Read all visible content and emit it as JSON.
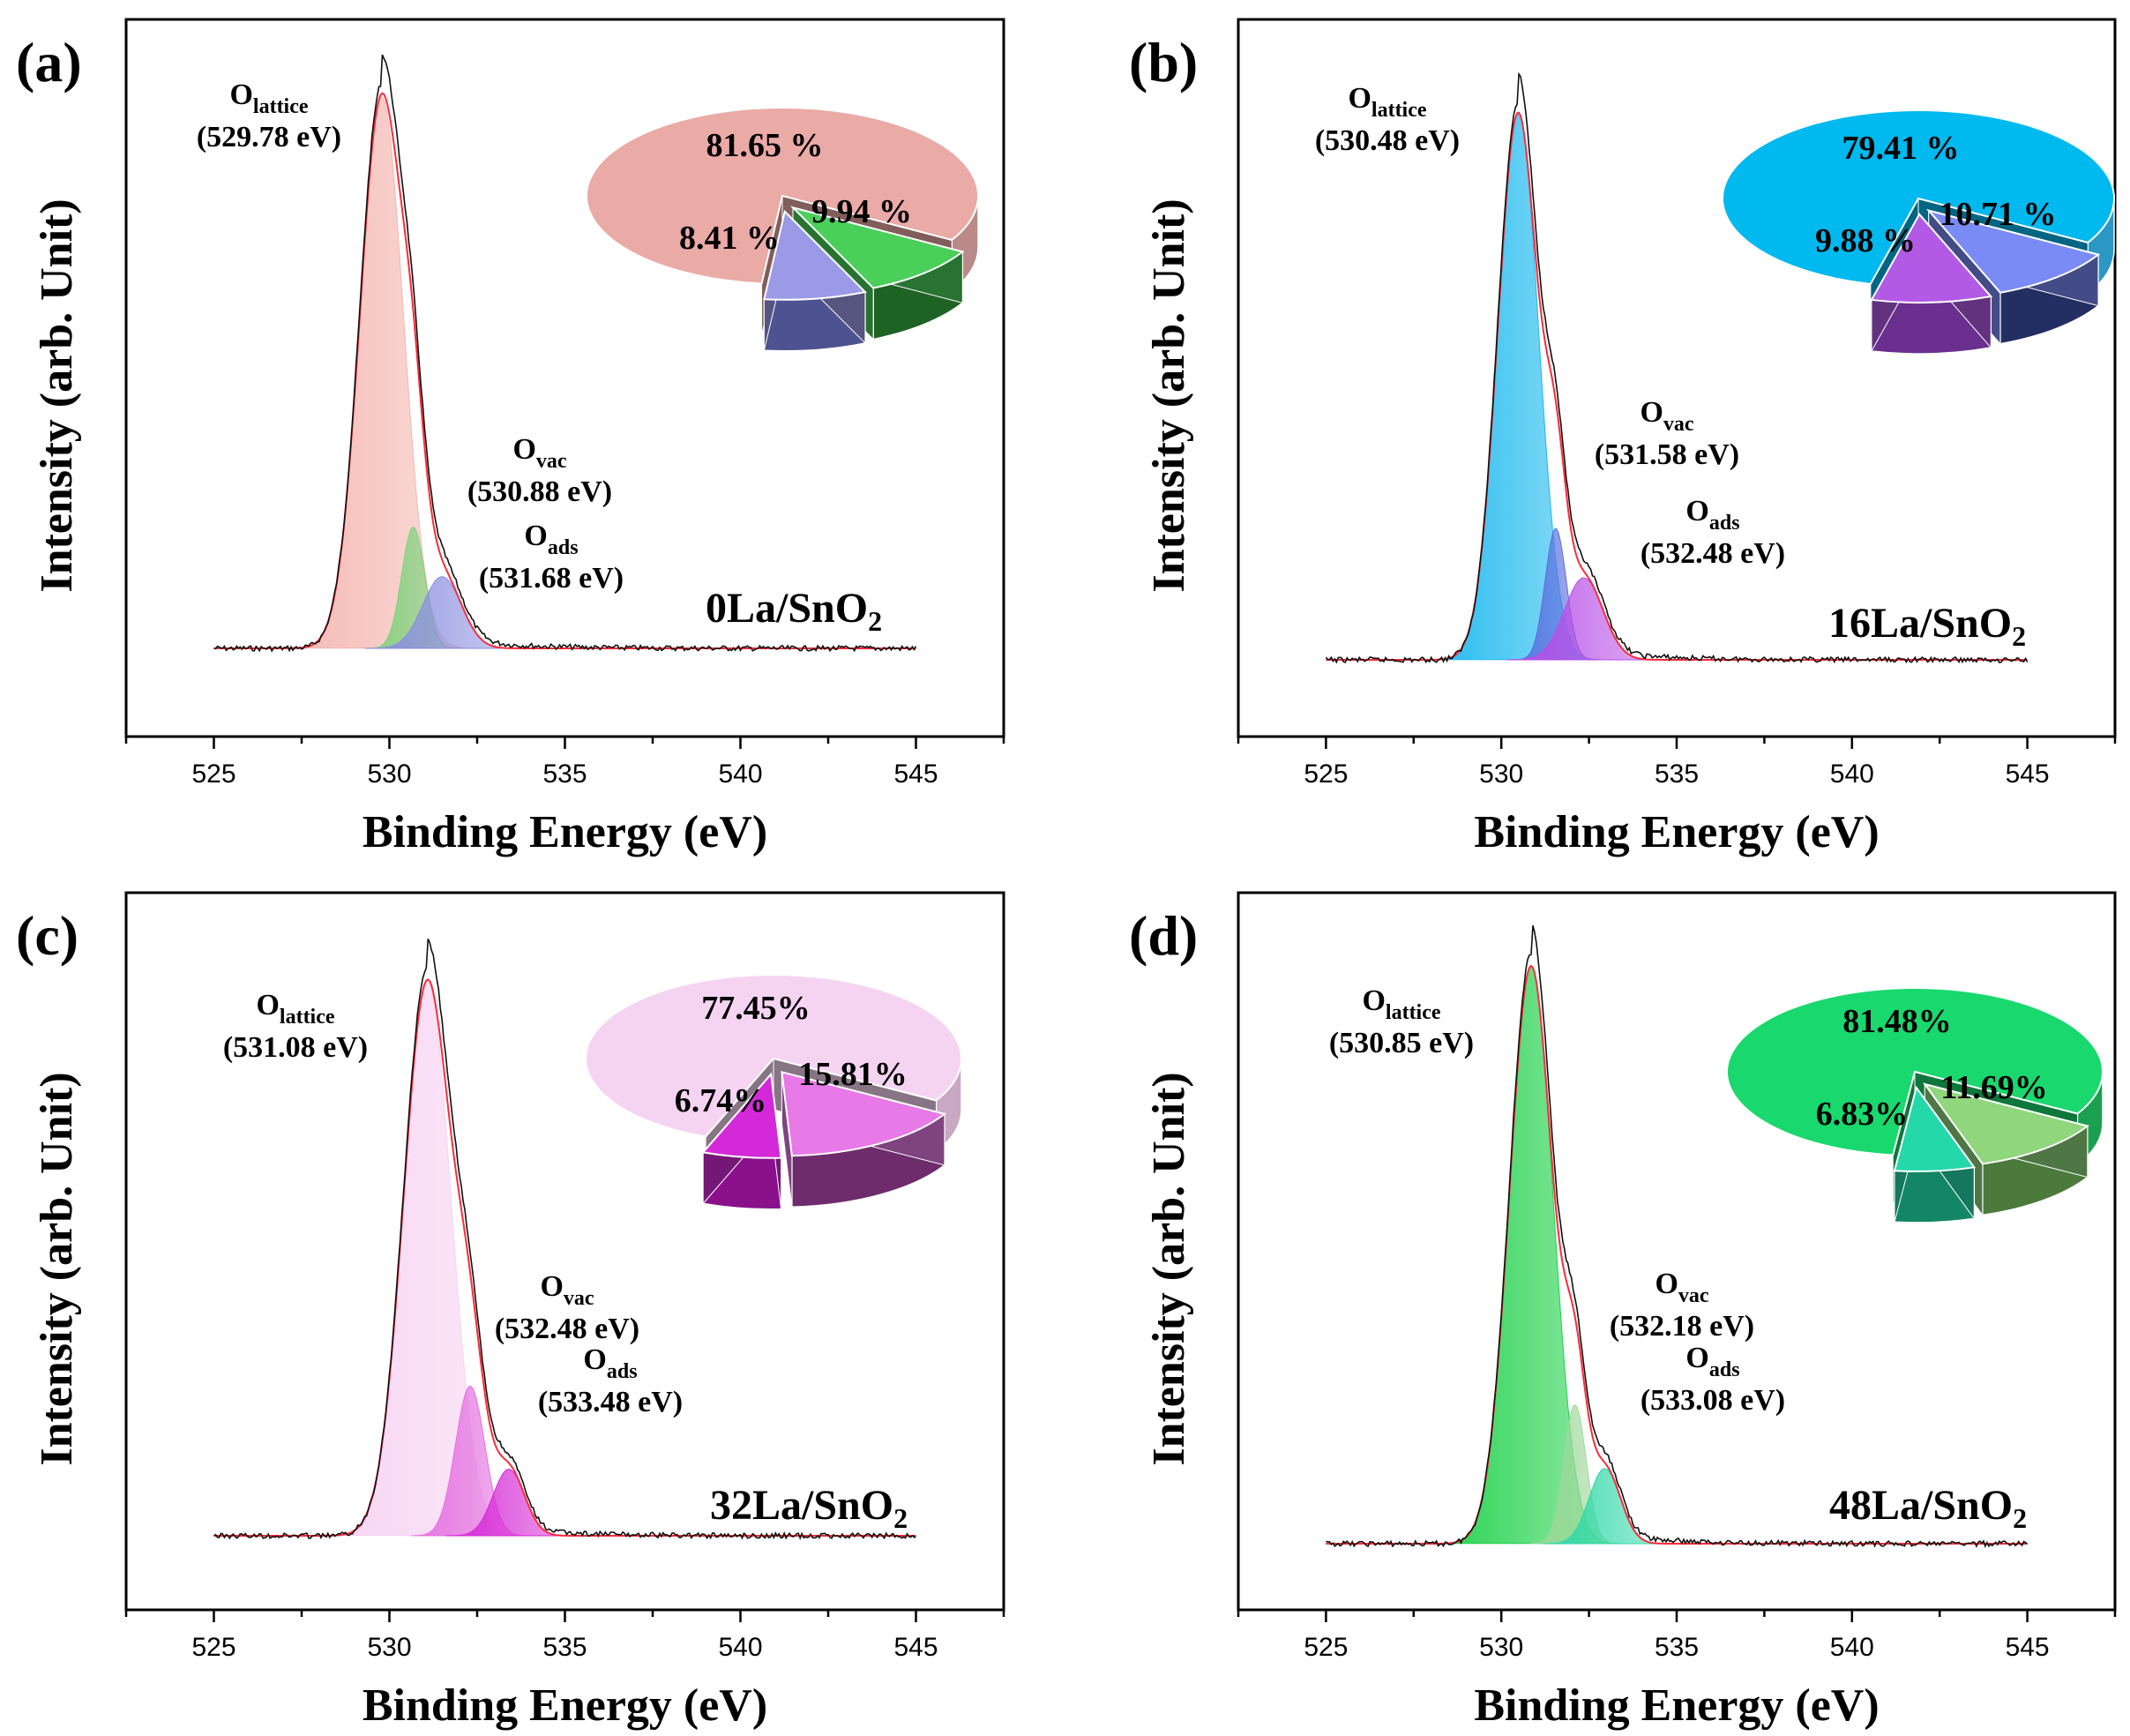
{
  "chart_data": [
    {
      "panel_label": "(a)",
      "type": "area",
      "sample": "0La/SnO",
      "sample_sub": "2",
      "xlabel": "Binding Energy (eV)",
      "ylabel": "Intensity (arb. Unit)",
      "xlim": [
        522.5,
        547.5
      ],
      "xticks": [
        "525",
        "530",
        "535",
        "540",
        "545"
      ],
      "fit_range": [
        525,
        545
      ],
      "peaks": [
        {
          "name": "O",
          "sub": "lattice",
          "energy_label": "(529.78 eV)",
          "center": 529.78,
          "height": 1.0,
          "sigma": 0.62
        },
        {
          "name": "O",
          "sub": "vac",
          "energy_label": "(530.88 eV)",
          "center": 530.68,
          "height": 0.22,
          "sigma": 0.33
        },
        {
          "name": "O",
          "sub": "ads",
          "energy_label": "(531.68 eV)",
          "center": 531.5,
          "height": 0.13,
          "sigma": 0.55
        }
      ],
      "pie": [
        {
          "label": "81.65 %",
          "value": 81.65
        },
        {
          "label": "9.94 %",
          "value": 9.94
        },
        {
          "label": "8.41 %",
          "value": 8.41
        }
      ],
      "colors": {
        "lattice": "#f4b6b0",
        "vac": "#7cd27c",
        "ads": "#8a8fe0",
        "pie": [
          "#eaaaa6",
          "#49cf5a",
          "#9a9ae6"
        ],
        "pie_dark": [
          "#b98a87",
          "#1f6324",
          "#4f5291"
        ]
      }
    },
    {
      "panel_label": "(b)",
      "type": "area",
      "sample": "16La/SnO",
      "sample_sub": "2",
      "xlabel": "Binding Energy (eV)",
      "ylabel": "Intensity (arb. Unit)",
      "xlim": [
        522.5,
        547.5
      ],
      "xticks": [
        "525",
        "530",
        "535",
        "540",
        "545"
      ],
      "fit_range": [
        525,
        545
      ],
      "peaks": [
        {
          "name": "O",
          "sub": "lattice",
          "energy_label": "(530.48 eV)",
          "center": 530.48,
          "height": 1.0,
          "sigma": 0.58
        },
        {
          "name": "O",
          "sub": "vac",
          "energy_label": "(531.58 eV)",
          "center": 531.55,
          "height": 0.24,
          "sigma": 0.3
        },
        {
          "name": "O",
          "sub": "ads",
          "energy_label": "(532.48 eV)",
          "center": 532.35,
          "height": 0.15,
          "sigma": 0.55
        }
      ],
      "pie": [
        {
          "label": "79.41 %",
          "value": 79.41
        },
        {
          "label": "10.71 %",
          "value": 10.71
        },
        {
          "label": "9.88 %",
          "value": 9.88
        }
      ],
      "colors": {
        "lattice": "#1ab8ee",
        "vac": "#5b6fe0",
        "ads": "#b84ee6",
        "pie": [
          "#00b9ee",
          "#7b8bf5",
          "#b25ae6"
        ],
        "pie_dark": [
          "#2b97c4",
          "#232e63",
          "#6a2f8f"
        ]
      }
    },
    {
      "panel_label": "(c)",
      "type": "area",
      "sample": "32La/SnO",
      "sample_sub": "2",
      "xlabel": "Binding Energy (eV)",
      "ylabel": "Intensity (arb. Unit)",
      "xlim": [
        522.5,
        547.5
      ],
      "xticks": [
        "525",
        "530",
        "535",
        "540",
        "545"
      ],
      "fit_range": [
        525,
        545
      ],
      "peaks": [
        {
          "name": "O",
          "sub": "lattice",
          "energy_label": "(531.08 eV)",
          "center": 531.08,
          "height": 1.0,
          "sigma": 0.68
        },
        {
          "name": "O",
          "sub": "vac",
          "energy_label": "(532.48 eV)",
          "center": 532.3,
          "height": 0.27,
          "sigma": 0.42
        },
        {
          "name": "O",
          "sub": "ads",
          "energy_label": "(533.48 eV)",
          "center": 533.4,
          "height": 0.12,
          "sigma": 0.45
        }
      ],
      "pie": [
        {
          "label": "77.45%",
          "value": 77.45
        },
        {
          "label": "15.81%",
          "value": 15.81
        },
        {
          "label": "6.74%",
          "value": 6.74
        }
      ],
      "colors": {
        "lattice": "#f7d2f2",
        "vac": "#e46ee0",
        "ads": "#d62ad6",
        "pie": [
          "#f5d4f2",
          "#e77ae6",
          "#d429d8"
        ],
        "pie_dark": [
          "#c8a8c2",
          "#6e2c6c",
          "#8a108c"
        ]
      }
    },
    {
      "panel_label": "(d)",
      "type": "area",
      "sample": "48La/SnO",
      "sample_sub": "2",
      "xlabel": "Binding Energy (eV)",
      "ylabel": "Intensity (arb. Unit)",
      "xlim": [
        522.5,
        547.5
      ],
      "xticks": [
        "525",
        "530",
        "535",
        "540",
        "545"
      ],
      "fit_range": [
        525,
        545
      ],
      "peaks": [
        {
          "name": "O",
          "sub": "lattice",
          "energy_label": "(530.85 eV)",
          "center": 530.85,
          "height": 1.0,
          "sigma": 0.62
        },
        {
          "name": "O",
          "sub": "vac",
          "energy_label": "(532.18 eV)",
          "center": 532.1,
          "height": 0.24,
          "sigma": 0.32
        },
        {
          "name": "O",
          "sub": "ads",
          "energy_label": "(533.08 eV)",
          "center": 532.95,
          "height": 0.13,
          "sigma": 0.45
        }
      ],
      "pie": [
        {
          "label": "81.48%",
          "value": 81.48
        },
        {
          "label": "11.69%",
          "value": 11.69
        },
        {
          "label": "6.83%",
          "value": 6.83
        }
      ],
      "colors": {
        "lattice": "#1fd14a",
        "vac": "#9ed89a",
        "ads": "#30d8a8",
        "pie": [
          "#19d86d",
          "#8fd67d",
          "#24d8aa"
        ],
        "pie_dark": [
          "#1aa050",
          "#4b7a3c",
          "#138765"
        ]
      }
    }
  ]
}
